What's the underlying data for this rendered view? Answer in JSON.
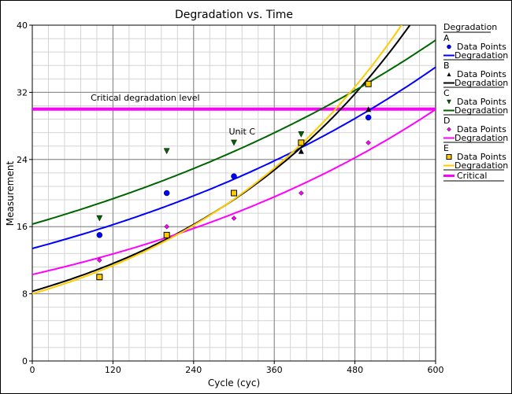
{
  "chart_data": {
    "type": "scatter",
    "title": "Degradation vs. Time",
    "xlabel": "Cycle (cyc)",
    "ylabel": "Measurement",
    "xlim": [
      0,
      600
    ],
    "ylim": [
      0,
      40
    ],
    "xticks": [
      0,
      120,
      240,
      360,
      480,
      600
    ],
    "yticks": [
      0,
      8,
      16,
      24,
      32,
      40
    ],
    "grid": true,
    "legend_placement": "right",
    "legend_title": "Degradation",
    "legend_point_label": "Data Points",
    "legend_line_label": "Degradation",
    "series": [
      {
        "name": "A",
        "color": "#0000ff",
        "marker": "circle",
        "points": [
          [
            100,
            15
          ],
          [
            200,
            20
          ],
          [
            300,
            22
          ],
          [
            500,
            29
          ]
        ],
        "fit": {
          "model": "exponential",
          "a": 13.4,
          "b": 0.0016
        }
      },
      {
        "name": "B",
        "color": "#000000",
        "marker": "triangle-up",
        "points": [
          [
            400,
            25
          ],
          [
            500,
            30
          ]
        ],
        "fit": {
          "model": "exponential",
          "a": 8.3,
          "b": 0.0028
        }
      },
      {
        "name": "C",
        "color": "#006400",
        "marker": "triangle-down",
        "points": [
          [
            100,
            17
          ],
          [
            200,
            25
          ],
          [
            300,
            26
          ],
          [
            400,
            27
          ]
        ],
        "fit": {
          "model": "exponential",
          "a": 16.3,
          "b": 0.00142
        }
      },
      {
        "name": "D",
        "color": "#ff00ff",
        "marker": "diamond",
        "points": [
          [
            100,
            12
          ],
          [
            200,
            16
          ],
          [
            300,
            17
          ],
          [
            400,
            20
          ],
          [
            500,
            26
          ]
        ],
        "fit": {
          "model": "exponential",
          "a": 10.3,
          "b": 0.00178
        }
      },
      {
        "name": "E",
        "color": "#ffcc00",
        "marker": "square",
        "points": [
          [
            100,
            10
          ],
          [
            200,
            15
          ],
          [
            300,
            20
          ],
          [
            400,
            26
          ],
          [
            500,
            33
          ]
        ],
        "fit": {
          "model": "exponential",
          "a": 8.0,
          "b": 0.00293
        }
      }
    ],
    "critical": {
      "name": "Critical",
      "value": 30,
      "color": "#ff00ff"
    },
    "annotations": [
      {
        "text": "Critical degradation level",
        "x": 168,
        "y": 31
      },
      {
        "text": "Unit C",
        "x": 312,
        "y": 27
      }
    ]
  }
}
